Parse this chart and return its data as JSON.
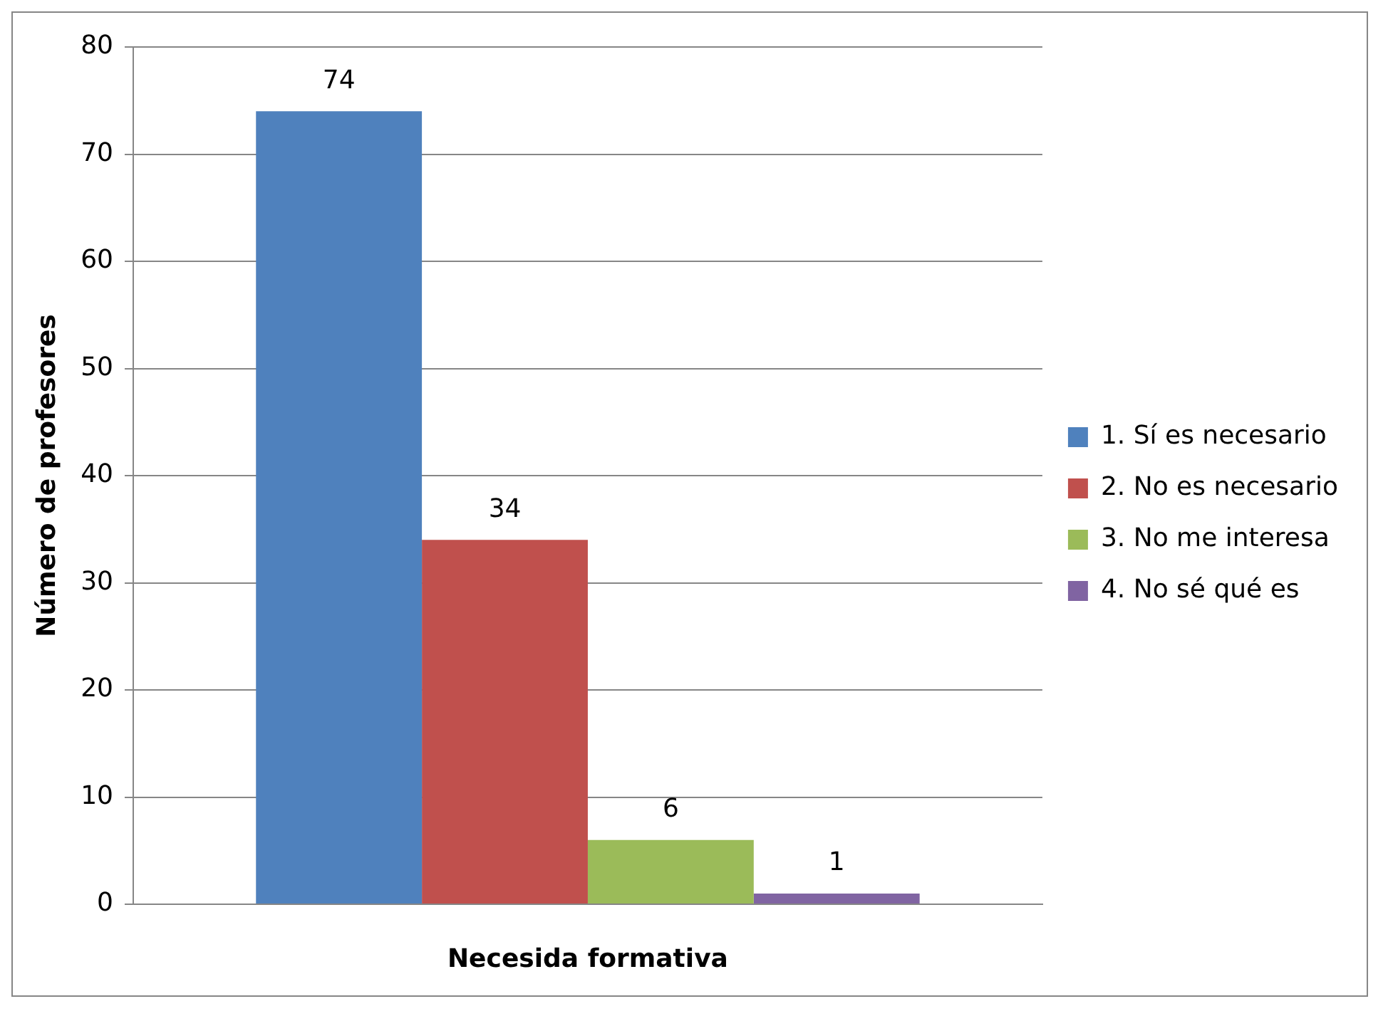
{
  "chart_data": {
    "type": "bar",
    "xlabel": "Necesida formativa",
    "ylabel": "Número de profesores",
    "categories": [
      null
    ],
    "series": [
      {
        "name": "1. Sí es necesario",
        "color": "#4f81bd",
        "values": [
          74
        ]
      },
      {
        "name": "2. No es necesario",
        "color": "#c0504d",
        "values": [
          34
        ]
      },
      {
        "name": "3. No me interesa",
        "color": "#9bbb59",
        "values": [
          6
        ]
      },
      {
        "name": "4. No sé qué es",
        "color": "#8064a2",
        "values": [
          1
        ]
      }
    ],
    "ylim": [
      0,
      80
    ],
    "yticks": [
      0,
      10,
      20,
      30,
      40,
      50,
      60,
      70,
      80
    ],
    "grid": "y",
    "legend": "right",
    "data_labels": true
  }
}
